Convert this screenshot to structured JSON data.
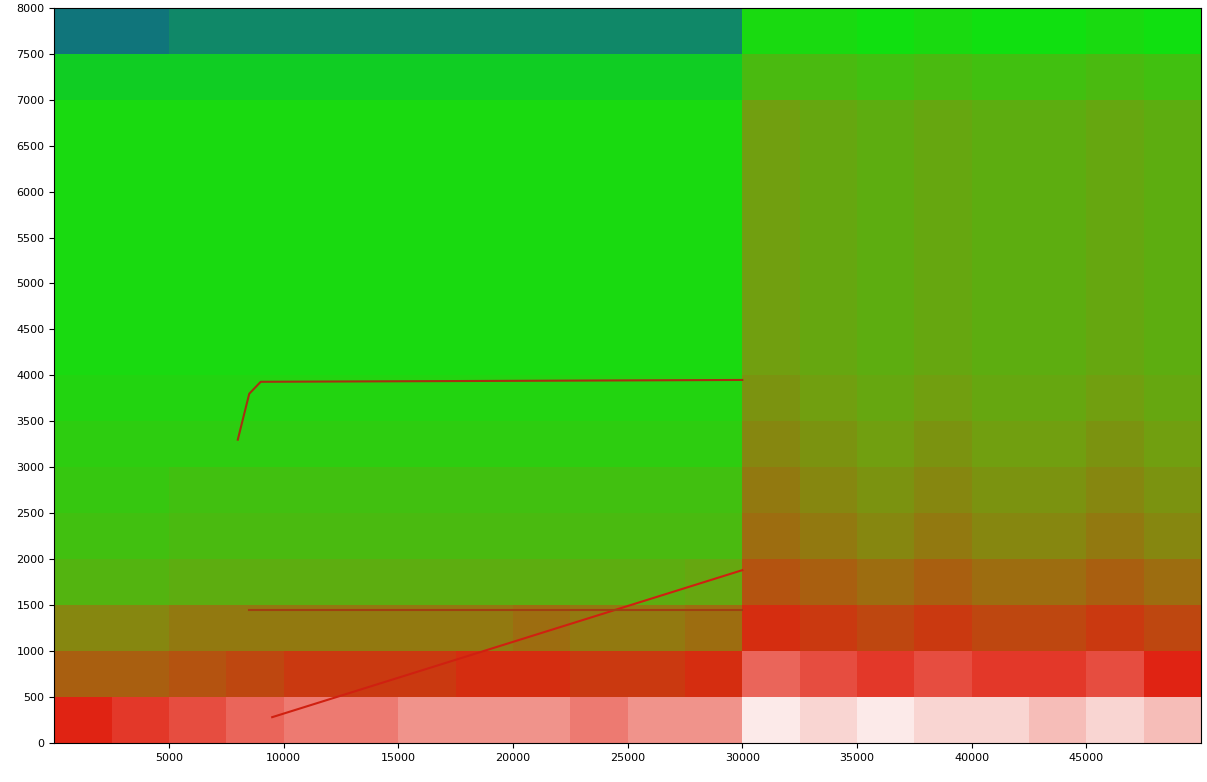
{
  "chart_data": {
    "type": "heatmap",
    "x_edges": [
      0,
      2500,
      5000,
      7500,
      10000,
      12500,
      15000,
      17500,
      20000,
      22500,
      25000,
      27500,
      30000,
      32500,
      35000,
      37500,
      40000,
      42500,
      45000,
      47500,
      50000
    ],
    "y_edges": [
      0,
      500,
      1000,
      1500,
      2000,
      2500,
      3000,
      3500,
      4000,
      4500,
      5000,
      5500,
      6000,
      6500,
      7000,
      7500,
      8000
    ],
    "cells": [
      [
        3.0,
        3.1,
        3.2,
        3.3,
        3.4,
        3.4,
        3.5,
        3.5,
        3.5,
        3.4,
        3.5,
        3.5,
        3.9,
        3.8,
        3.9,
        3.8,
        3.8,
        3.7,
        3.8,
        3.7
      ],
      [
        2.5,
        2.5,
        2.6,
        2.7,
        2.8,
        2.8,
        2.8,
        2.9,
        2.9,
        2.8,
        2.8,
        2.9,
        3.3,
        3.2,
        3.1,
        3.2,
        3.1,
        3.1,
        3.2,
        3.0
      ],
      [
        2.2,
        2.2,
        2.3,
        2.3,
        2.3,
        2.3,
        2.3,
        2.3,
        2.4,
        2.3,
        2.3,
        2.4,
        2.9,
        2.8,
        2.7,
        2.8,
        2.7,
        2.7,
        2.8,
        2.7
      ],
      [
        1.7,
        1.7,
        1.8,
        1.8,
        1.8,
        1.8,
        1.8,
        1.8,
        1.8,
        1.8,
        1.8,
        1.9,
        2.6,
        2.5,
        2.4,
        2.5,
        2.4,
        2.4,
        2.5,
        2.4
      ],
      [
        1.5,
        1.5,
        1.6,
        1.6,
        1.6,
        1.6,
        1.6,
        1.6,
        1.6,
        1.6,
        1.6,
        1.6,
        2.4,
        2.3,
        2.2,
        2.3,
        2.2,
        2.2,
        2.3,
        2.2
      ],
      [
        1.4,
        1.4,
        1.5,
        1.5,
        1.5,
        1.5,
        1.5,
        1.5,
        1.5,
        1.5,
        1.5,
        1.5,
        2.3,
        2.2,
        2.1,
        2.2,
        2.1,
        2.1,
        2.2,
        2.1
      ],
      [
        1.3,
        1.3,
        1.3,
        1.3,
        1.3,
        1.3,
        1.3,
        1.3,
        1.3,
        1.3,
        1.3,
        1.3,
        2.2,
        2.1,
        2.0,
        2.1,
        2.0,
        2.0,
        2.1,
        2.0
      ],
      [
        1.2,
        1.2,
        1.2,
        1.2,
        1.2,
        1.2,
        1.2,
        1.2,
        1.2,
        1.2,
        1.2,
        1.2,
        2.1,
        2.0,
        1.9,
        2.0,
        1.9,
        1.9,
        2.0,
        1.9
      ],
      [
        1.1,
        1.1,
        1.1,
        1.1,
        1.1,
        1.1,
        1.1,
        1.1,
        1.1,
        1.1,
        1.1,
        1.1,
        2.0,
        1.9,
        1.8,
        1.9,
        1.8,
        1.8,
        1.9,
        1.8
      ],
      [
        1.1,
        1.1,
        1.1,
        1.1,
        1.1,
        1.1,
        1.1,
        1.1,
        1.1,
        1.1,
        1.1,
        1.1,
        2.0,
        1.9,
        1.8,
        1.9,
        1.8,
        1.8,
        1.9,
        1.8
      ],
      [
        1.1,
        1.1,
        1.1,
        1.1,
        1.1,
        1.1,
        1.1,
        1.1,
        1.1,
        1.1,
        1.1,
        1.1,
        2.0,
        1.9,
        1.8,
        1.9,
        1.8,
        1.8,
        1.9,
        1.8
      ],
      [
        1.1,
        1.1,
        1.1,
        1.1,
        1.1,
        1.1,
        1.1,
        1.1,
        1.1,
        1.1,
        1.1,
        1.1,
        2.0,
        1.9,
        1.8,
        1.9,
        1.8,
        1.8,
        1.9,
        1.8
      ],
      [
        1.1,
        1.1,
        1.1,
        1.1,
        1.1,
        1.1,
        1.1,
        1.1,
        1.1,
        1.1,
        1.1,
        1.1,
        2.0,
        1.9,
        1.8,
        1.9,
        1.8,
        1.8,
        1.9,
        1.8
      ],
      [
        1.1,
        1.1,
        1.1,
        1.1,
        1.1,
        1.1,
        1.1,
        1.1,
        1.1,
        1.1,
        1.1,
        1.1,
        2.0,
        1.9,
        1.8,
        1.9,
        1.8,
        1.8,
        1.9,
        1.8
      ],
      [
        0.9,
        0.9,
        0.9,
        0.9,
        0.9,
        0.9,
        0.9,
        0.9,
        0.9,
        0.9,
        0.9,
        0.9,
        1.6,
        1.6,
        1.5,
        1.6,
        1.5,
        1.5,
        1.6,
        1.5
      ],
      [
        0.4,
        0.4,
        0.5,
        0.5,
        0.5,
        0.5,
        0.5,
        0.5,
        0.5,
        0.5,
        0.5,
        0.5,
        1.1,
        1.1,
        1.0,
        1.1,
        1.0,
        1.0,
        1.1,
        1.0
      ]
    ],
    "value_range": [
      0,
      4
    ],
    "series": [
      {
        "type": "line",
        "color": "#a83010",
        "x": [
          8000,
          8500,
          9000,
          30000
        ],
        "values": [
          3300,
          3800,
          3930,
          3950
        ]
      },
      {
        "type": "line",
        "color": "#d02010",
        "x": [
          9500,
          30000
        ],
        "values": [
          280,
          1880
        ]
      },
      {
        "type": "line",
        "color": "#a04010",
        "x": [
          8500,
          30000
        ],
        "values": [
          1450,
          1450
        ]
      }
    ],
    "xlim": [
      0,
      50000
    ],
    "ylim": [
      0,
      8000
    ],
    "xticks": [
      5000,
      10000,
      15000,
      20000,
      25000,
      30000,
      35000,
      40000,
      45000
    ],
    "yticks": [
      0,
      500,
      1000,
      1500,
      2000,
      2500,
      3000,
      3500,
      4000,
      4500,
      5000,
      5500,
      6000,
      6500,
      7000,
      7500,
      8000
    ]
  }
}
